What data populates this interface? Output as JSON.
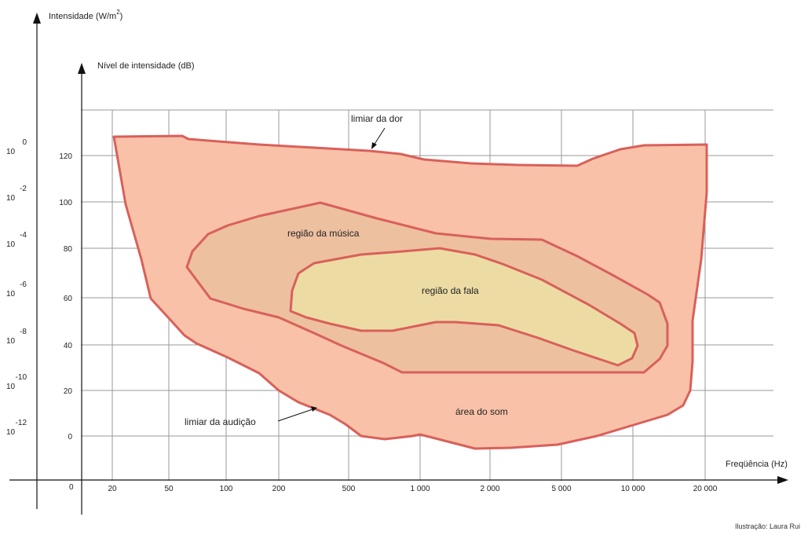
{
  "axes": {
    "intensity_label_prefix": "Intensidade (W/m",
    "intensity_label_exp": "2",
    "intensity_label_suffix": ")",
    "level_label": "Nível de intensidade (dB)",
    "frequency_label": "Freqüência (Hz)",
    "origin_label": "0",
    "db_ticks": [
      "120",
      "100",
      "80",
      "60",
      "40",
      "20",
      "0"
    ],
    "intensity_ticks": [
      {
        "base": "10",
        "exp": "0"
      },
      {
        "base": "10",
        "exp": "-2"
      },
      {
        "base": "10",
        "exp": "-4"
      },
      {
        "base": "10",
        "exp": "-6"
      },
      {
        "base": "10",
        "exp": "-8"
      },
      {
        "base": "10",
        "exp": "-10"
      },
      {
        "base": "10",
        "exp": "-12"
      }
    ],
    "freq_ticks": [
      "20",
      "50",
      "100",
      "200",
      "500",
      "1 000",
      "2 000",
      "5 000",
      "10 000",
      "20 000"
    ]
  },
  "regions": {
    "pain_threshold": "limiar da dor",
    "music_region": "região da música",
    "speech_region": "região da fala",
    "sound_area": "área do som",
    "hearing_threshold": "limiar da audição"
  },
  "colors": {
    "sound_fill": "#f9c2a8",
    "music_fill": "#edc0a0",
    "speech_fill": "#ecdca4",
    "outline": "#d9605a",
    "grid": "#9a9a9a"
  },
  "credit": "Ilustração: Laura Rui"
}
